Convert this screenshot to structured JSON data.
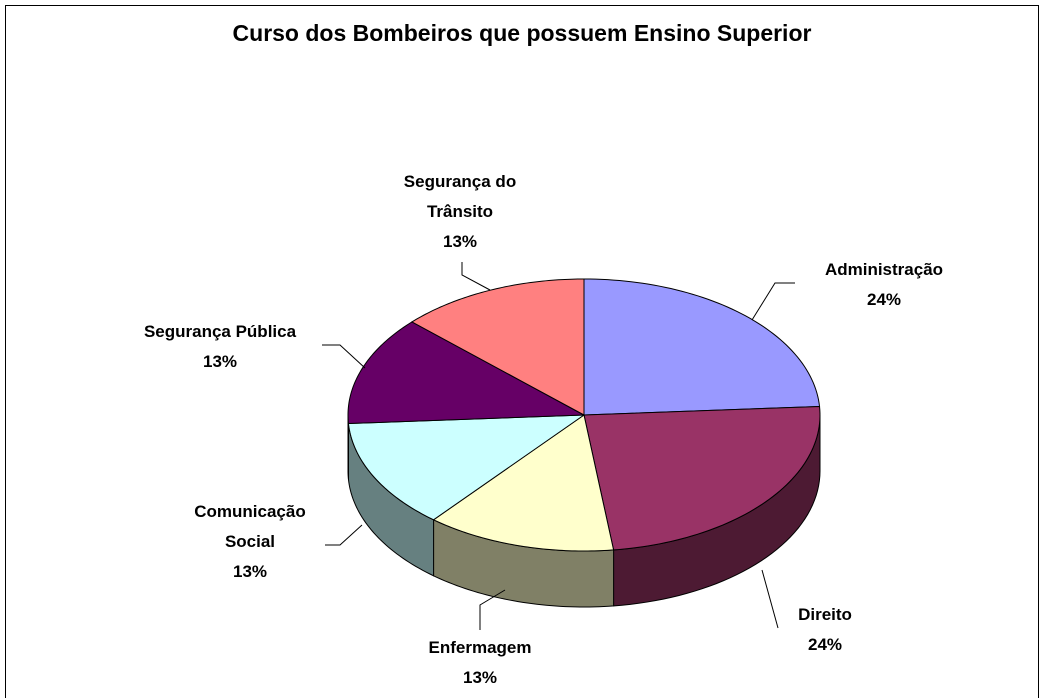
{
  "chart_data": {
    "type": "pie",
    "title": "Curso dos Bombeiros que possuem Ensino Superior",
    "categories": [
      "Administração",
      "Direito",
      "Enfermagem",
      "Comunicação Social",
      "Segurança Pública",
      "Segurança do Trânsito"
    ],
    "values": [
      24,
      24,
      13,
      13,
      13,
      13
    ],
    "value_labels": [
      "24%",
      "24%",
      "13%",
      "13%",
      "13%",
      "13%"
    ],
    "colors": [
      "#9999ff",
      "#993366",
      "#ffffcc",
      "#ccffff",
      "#660066",
      "#ff8080"
    ]
  }
}
